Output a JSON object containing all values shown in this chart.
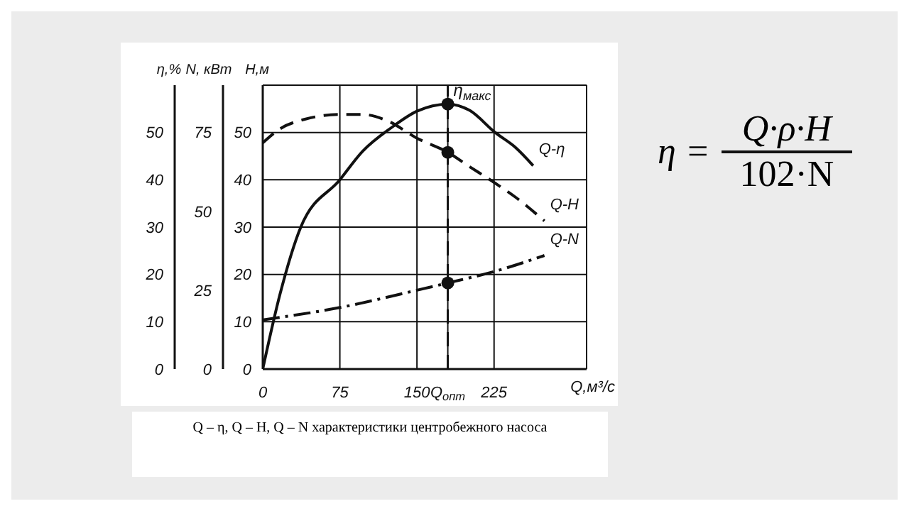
{
  "chart_data": {
    "type": "line",
    "xlabel": "Q,м³/с",
    "ylabel": "η,%",
    "y2label": "H,м",
    "y3label": "N, кВт",
    "xlim": [
      0,
      315
    ],
    "xticks": [
      0,
      75,
      150,
      {
        "value": 180,
        "label": "Q$_{опт}$"
      },
      225
    ],
    "ylim": [
      0,
      60
    ],
    "yticks": [
      0,
      10,
      20,
      30,
      40,
      50
    ],
    "y2lim": [
      0,
      60
    ],
    "y2ticks": [
      0,
      10,
      20,
      30,
      40,
      50
    ],
    "y3lim": [
      0,
      90
    ],
    "y3ticks": [
      0,
      25,
      50,
      75
    ],
    "grid": true,
    "legend": false,
    "series": [
      {
        "name": "Q-η",
        "axis": "y",
        "color": "#111111",
        "line_style": "solid",
        "marker": "none",
        "x": [
          0,
          17,
          37,
          75,
          97,
          125,
          150,
          180,
          201,
          226,
          246,
          263
        ],
        "values": [
          0,
          16,
          30,
          40,
          46,
          51,
          54.5,
          56,
          54.7,
          50,
          46.8,
          43
        ]
      },
      {
        "name": "Q-H",
        "axis": "y2",
        "color": "#111111",
        "line_style": "dashed",
        "marker": "none",
        "x": [
          0,
          17,
          41,
          75,
          97,
          121,
          150,
          180,
          201,
          226,
          246,
          274
        ],
        "values": [
          47.8,
          50.8,
          52.8,
          53.8,
          53.8,
          52.5,
          48.8,
          45.8,
          42.8,
          39.3,
          36.3,
          31.3
        ]
      },
      {
        "name": "Q-N",
        "axis": "y3",
        "color": "#111111",
        "line_style": "dotted",
        "marker": "none",
        "x": [
          0,
          75,
          150,
          180,
          226,
          274
        ],
        "values": [
          15.6,
          19.5,
          25,
          27.3,
          31,
          36
        ]
      },
      {
        "type": "scatter",
        "axis": "y",
        "color": "#111111",
        "marker": "circle",
        "x": [
          180
        ],
        "values": [
          56
        ]
      },
      {
        "type": "scatter",
        "axis": "y2",
        "color": "#111111",
        "marker": "circle",
        "x": [
          180
        ],
        "values": [
          45.8
        ]
      },
      {
        "type": "scatter",
        "axis": "y3",
        "color": "#111111",
        "marker": "circle",
        "x": [
          180
        ],
        "values": [
          27.3
        ]
      }
    ],
    "ref_lines": [
      {
        "axis": "x",
        "value": 180,
        "line_style": "dashed",
        "color": "#111111"
      }
    ],
    "annotations": [
      {
        "text": "η$_{макс}$",
        "x": 180,
        "y": 56
      },
      "η =",
      "Q·ρ·H",
      "102·N",
      "Q – η, Q – H, Q – N характеристики центробежного насоса"
    ]
  }
}
